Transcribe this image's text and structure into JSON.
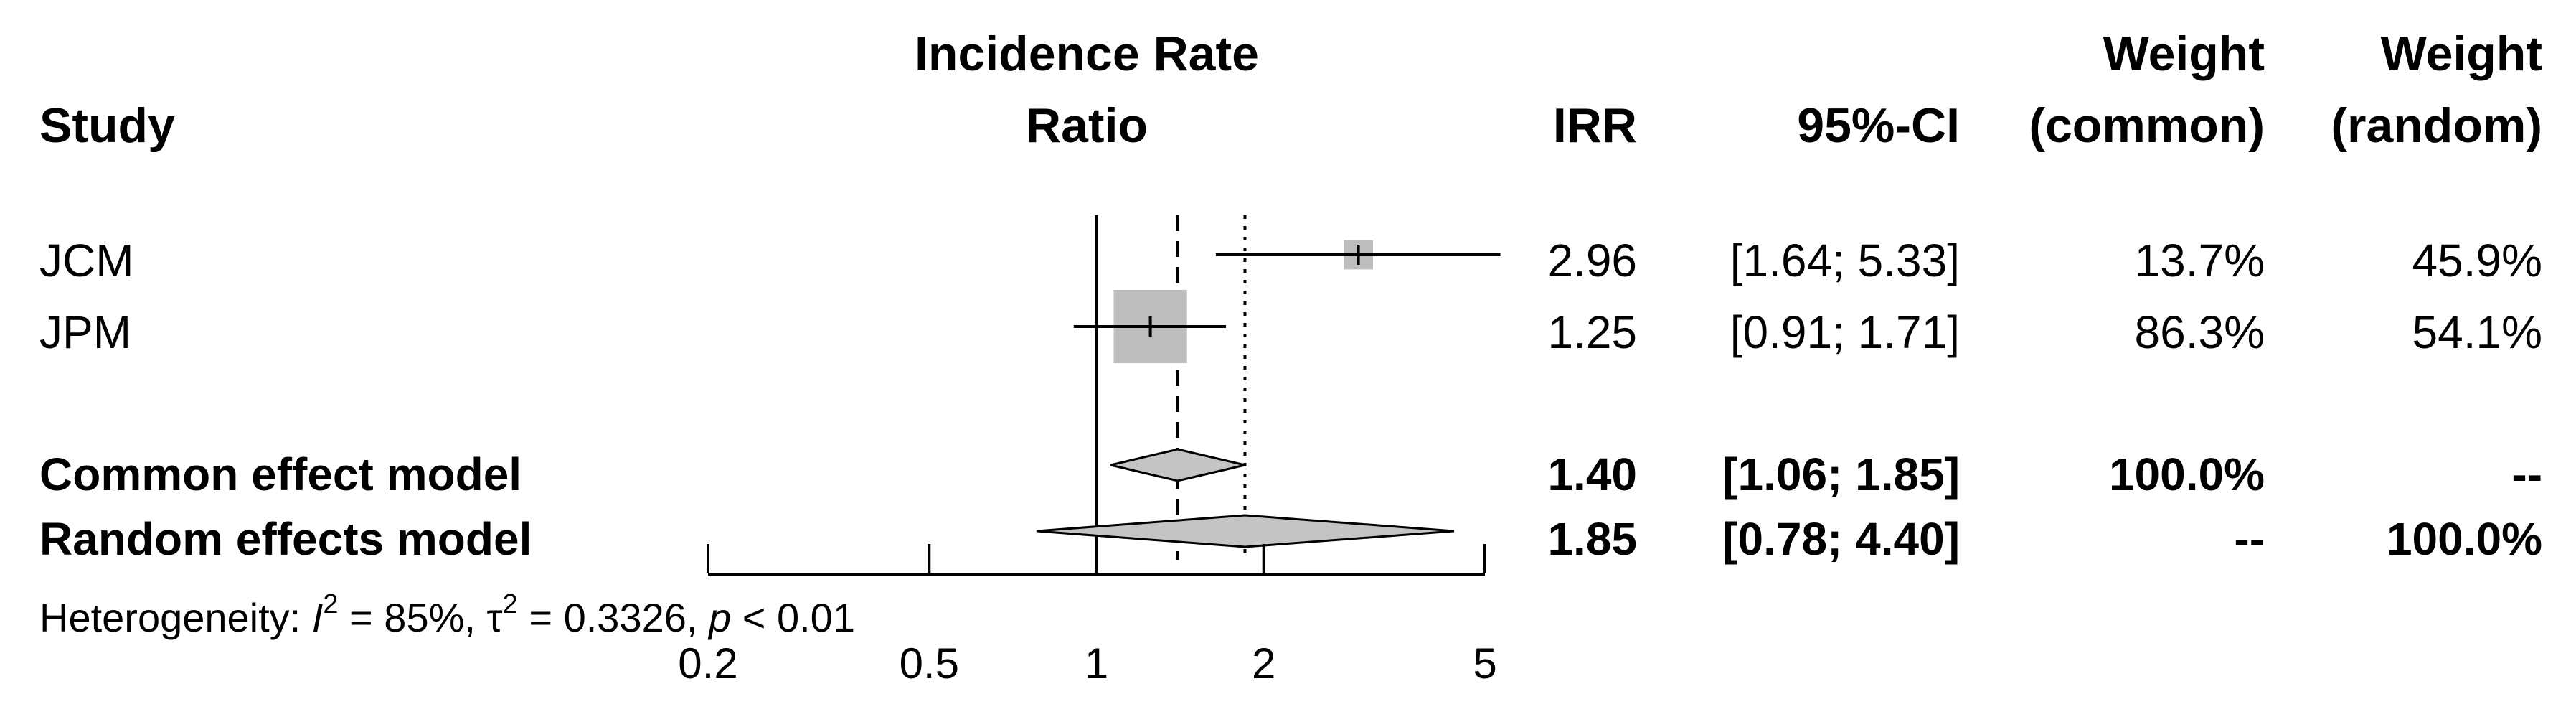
{
  "chart_data": {
    "type": "forest",
    "measure": "IRR",
    "headers": {
      "study": "Study",
      "effect_line1": "Incidence Rate",
      "effect_line2": "Ratio",
      "irr": "IRR",
      "ci": "95%-CI",
      "weight_common_line1": "Weight",
      "weight_common_line2": "(common)",
      "weight_random_line1": "Weight",
      "weight_random_line2": "(random)"
    },
    "studies": [
      {
        "name": "JCM",
        "irr": 2.96,
        "lower": 1.64,
        "upper": 5.33,
        "irr_text": "2.96",
        "ci_text": "[1.64; 5.33]",
        "weight_common": 13.7,
        "weight_random": 45.9,
        "weight_common_text": "13.7%",
        "weight_random_text": "45.9%"
      },
      {
        "name": "JPM",
        "irr": 1.25,
        "lower": 0.91,
        "upper": 1.71,
        "irr_text": "1.25",
        "ci_text": "[0.91; 1.71]",
        "weight_common": 86.3,
        "weight_random": 54.1,
        "weight_common_text": "86.3%",
        "weight_random_text": "54.1%"
      }
    ],
    "summaries": [
      {
        "name": "Common effect model",
        "irr": 1.4,
        "lower": 1.06,
        "upper": 1.85,
        "irr_text": "1.40",
        "ci_text": "[1.06; 1.85]",
        "weight_common_text": "100.0%",
        "weight_random_text": "--",
        "line_style": "dashed"
      },
      {
        "name": "Random effects model",
        "irr": 1.85,
        "lower": 0.78,
        "upper": 4.4,
        "irr_text": "1.85",
        "ci_text": "[0.78; 4.40]",
        "weight_common_text": "--",
        "weight_random_text": "100.0%",
        "line_style": "dotted"
      }
    ],
    "heterogeneity": {
      "prefix": "Heterogeneity: ",
      "i2_symbol": "I",
      "i2_value": " = 85%, ",
      "tau2_symbol": "τ",
      "tau2_value": " = 0.3326, ",
      "p_symbol": "p",
      "p_value": " < 0.01"
    },
    "x_axis": {
      "scale": "log",
      "ticks": [
        0.2,
        0.5,
        1,
        2,
        5
      ],
      "tick_labels": [
        "0.2",
        "0.5",
        "1",
        "2",
        "5"
      ],
      "range": [
        0.2,
        5
      ],
      "reference_line": 1
    },
    "colors": {
      "box": "#bdbdbd",
      "line": "#000000",
      "diamond": "#c4c4c4"
    }
  }
}
